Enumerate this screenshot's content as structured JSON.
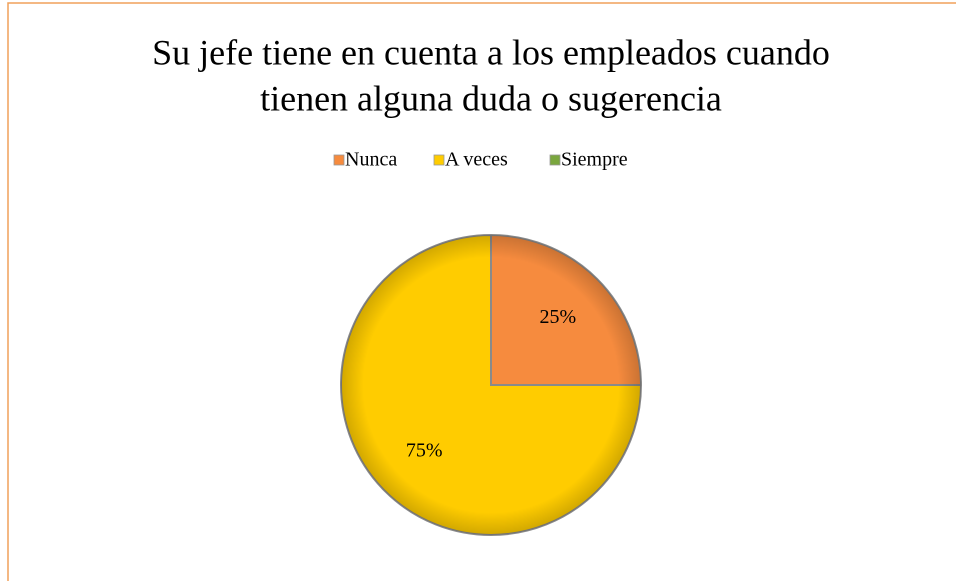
{
  "chart_data": {
    "type": "pie",
    "title": [
      "Su jefe tiene en cuenta a los empleados cuando",
      "tienen alguna duda o sugerencia"
    ],
    "categories": [
      "Nunca",
      "A veces",
      "Siempre"
    ],
    "values": [
      25,
      75,
      0
    ],
    "value_labels": [
      "25%",
      "75%",
      null
    ],
    "colors": [
      "#f68b3e",
      "#ffcc00",
      "#7aa63e"
    ],
    "legend": "top"
  }
}
